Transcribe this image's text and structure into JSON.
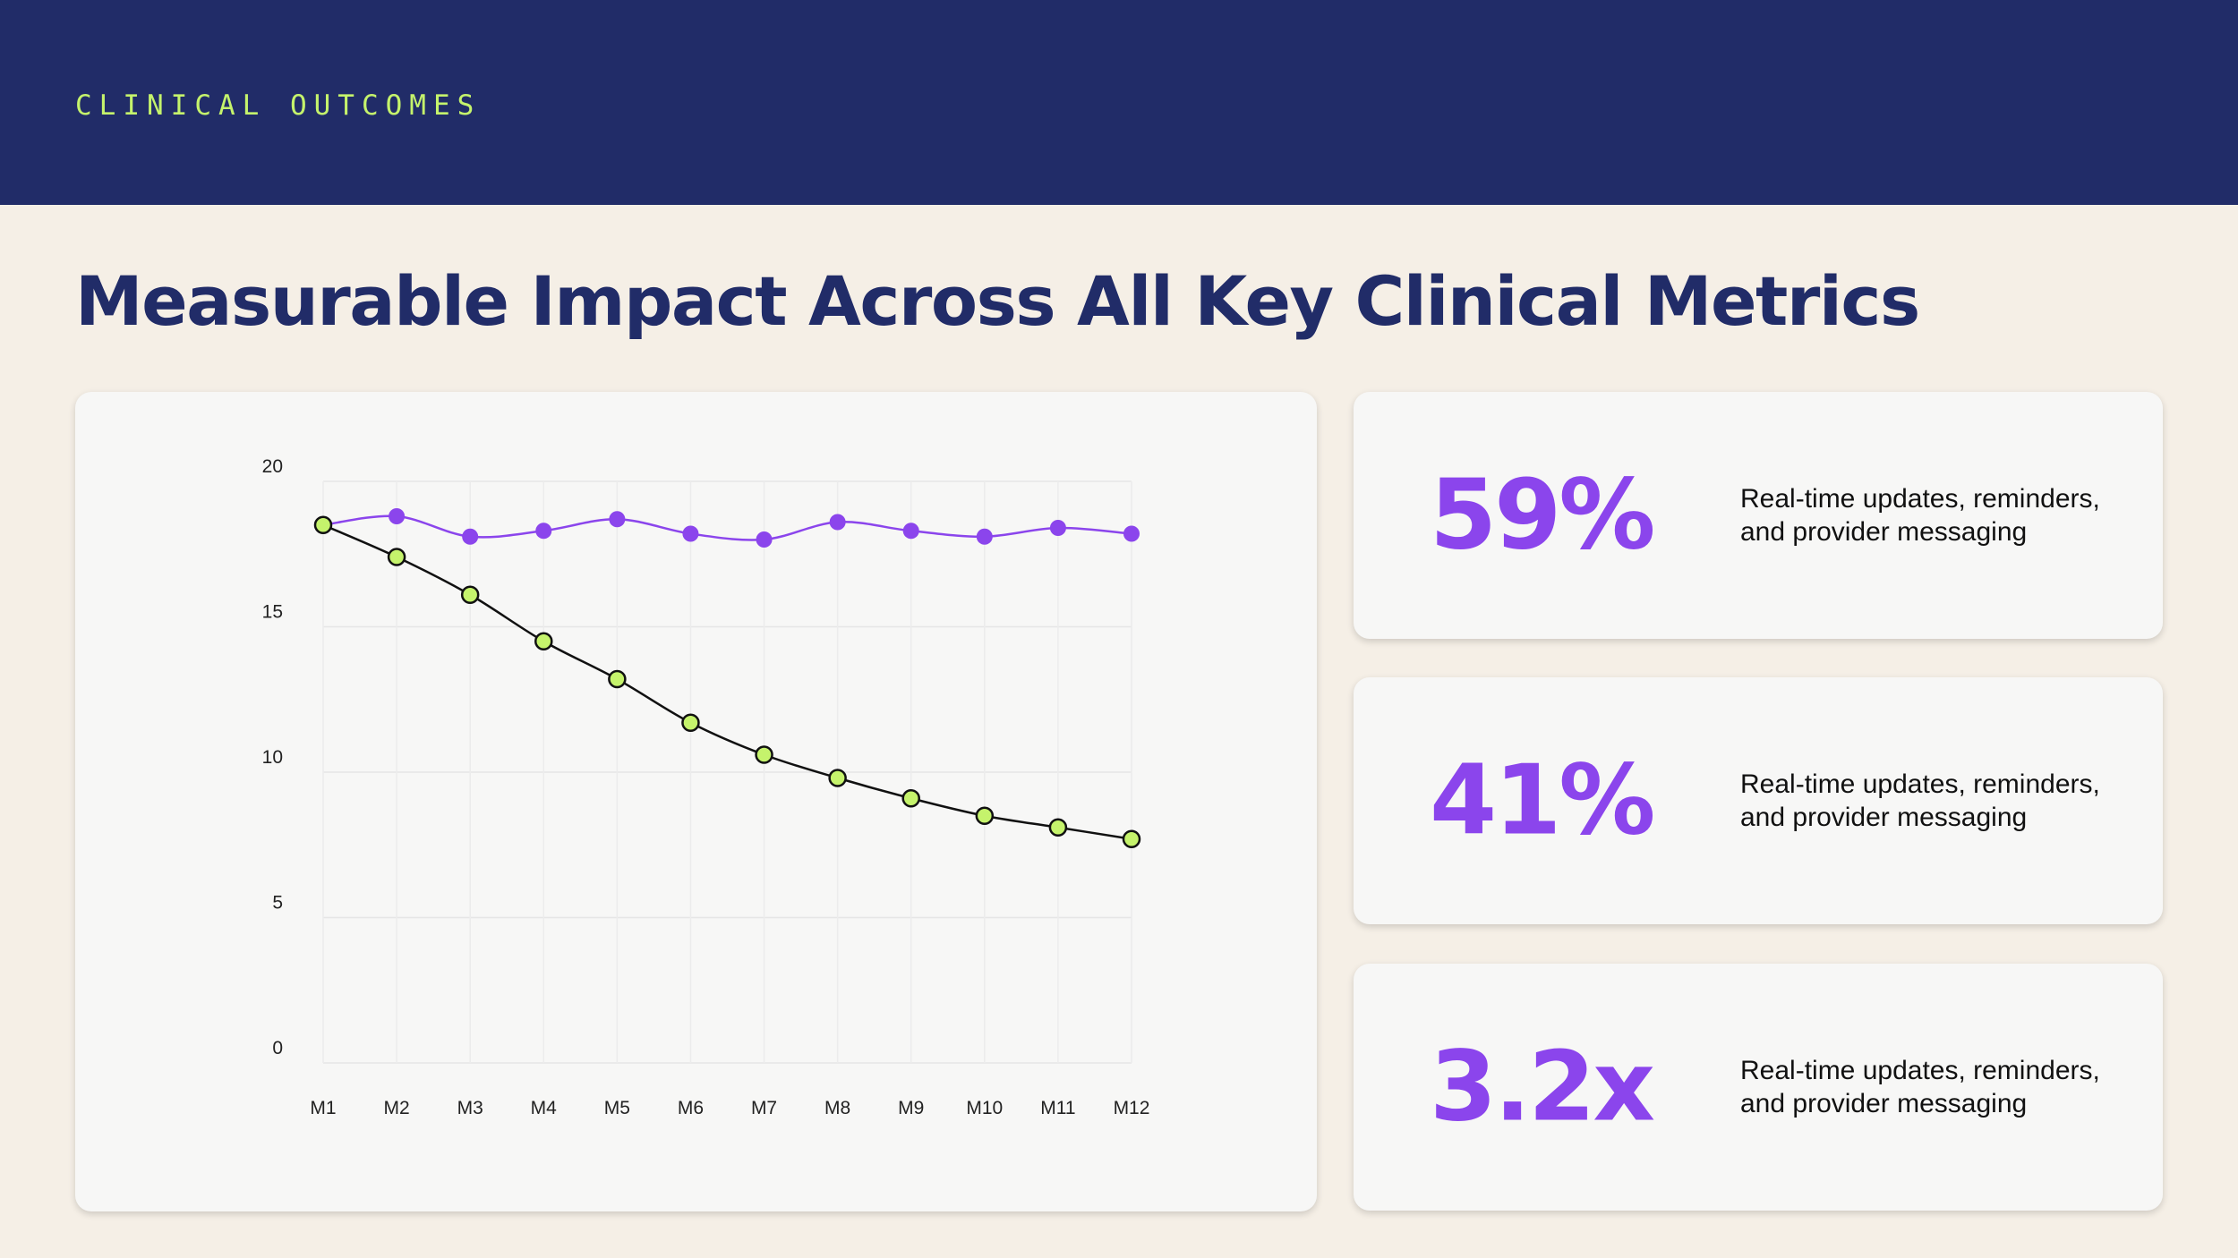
{
  "header": {
    "section_label": "CLINICAL OUTCOMES",
    "title": "Measurable Impact Across All Key Clinical Metrics"
  },
  "colors": {
    "navy": "#212c68",
    "accent_lime": "#c5f36c",
    "accent_purple": "#8b45ec",
    "background": "#f5efe6",
    "card": "#f7f7f6"
  },
  "chart_data": {
    "type": "line",
    "categories": [
      "M1",
      "M2",
      "M3",
      "M4",
      "M5",
      "M6",
      "M7",
      "M8",
      "M9",
      "M10",
      "M11",
      "M12"
    ],
    "y_ticks": [
      "0",
      "5",
      "10",
      "15",
      "20"
    ],
    "ylim": [
      0,
      20
    ],
    "grid": true,
    "legend": "none",
    "series": [
      {
        "color": "#8b45ec",
        "marker_fill": "#8b45ec",
        "marker_stroke": "none",
        "smooth": true,
        "values": [
          18.5,
          18.8,
          18.1,
          18.3,
          18.7,
          18.2,
          18.0,
          18.6,
          18.3,
          18.1,
          18.4,
          18.2
        ]
      },
      {
        "color": "#111111",
        "marker_fill": "#c5f36c",
        "marker_stroke": "#111111",
        "smooth": true,
        "values": [
          18.5,
          17.4,
          16.1,
          14.5,
          13.2,
          11.7,
          10.6,
          9.8,
          9.1,
          8.5,
          8.1,
          7.7
        ]
      }
    ]
  },
  "stats": [
    {
      "value": "59%",
      "description": "Real-time updates, reminders, and provider messaging"
    },
    {
      "value": "41%",
      "description": "Real-time updates, reminders, and provider messaging"
    },
    {
      "value": "3.2x",
      "description": "Real-time updates, reminders, and provider messaging"
    }
  ]
}
